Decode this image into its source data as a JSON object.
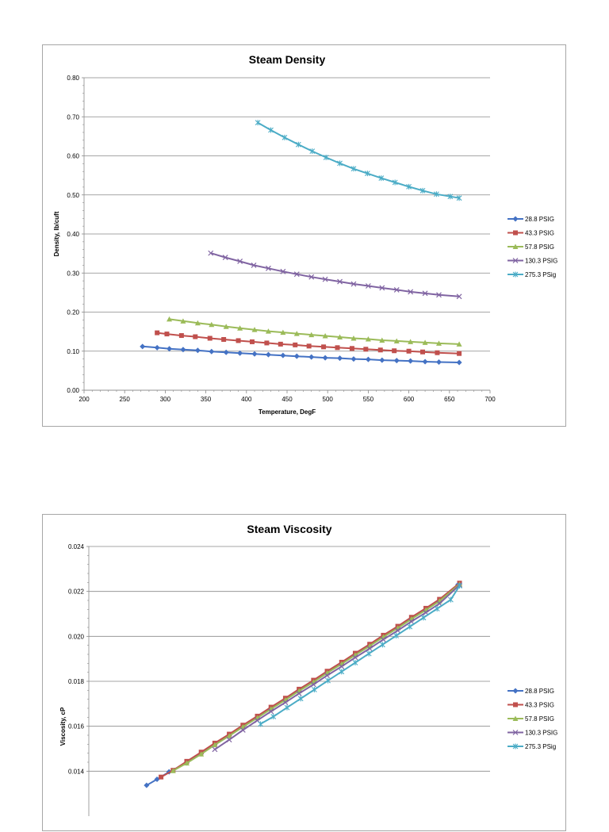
{
  "chart_data": [
    {
      "type": "line",
      "title": "Steam Density",
      "xlabel": "Temperature, DegF",
      "ylabel": "Density, lb/cuft",
      "xlim": [
        200,
        700
      ],
      "ylim": [
        0,
        0.8
      ],
      "xticks": [
        "200",
        "250",
        "300",
        "350",
        "400",
        "450",
        "500",
        "550",
        "600",
        "650",
        "700"
      ],
      "yticks": [
        "0.00",
        "0.10",
        "0.20",
        "0.30",
        "0.40",
        "0.50",
        "0.60",
        "0.70",
        "0.80"
      ],
      "grid": true,
      "legend_position": "right",
      "series": [
        {
          "name": "28.8 PSIG",
          "color": "#4472c4",
          "marker": "diamond",
          "x": [
            272,
            290,
            305,
            322,
            340,
            357,
            375,
            392,
            410,
            427,
            445,
            462,
            480,
            497,
            515,
            532,
            550,
            567,
            585,
            602,
            620,
            637,
            662
          ],
          "y": [
            0.112,
            0.109,
            0.106,
            0.104,
            0.102,
            0.099,
            0.097,
            0.095,
            0.093,
            0.091,
            0.089,
            0.087,
            0.085,
            0.083,
            0.082,
            0.08,
            0.079,
            0.077,
            0.076,
            0.075,
            0.073,
            0.072,
            0.071
          ]
        },
        {
          "name": "43.3 PSIG",
          "color": "#c0504d",
          "marker": "square",
          "x": [
            290,
            302,
            320,
            337,
            355,
            372,
            390,
            407,
            425,
            442,
            460,
            477,
            495,
            512,
            530,
            547,
            565,
            582,
            600,
            617,
            635,
            662
          ],
          "y": [
            0.147,
            0.144,
            0.14,
            0.137,
            0.133,
            0.13,
            0.127,
            0.124,
            0.121,
            0.118,
            0.116,
            0.113,
            0.111,
            0.109,
            0.107,
            0.105,
            0.103,
            0.101,
            0.1,
            0.098,
            0.096,
            0.094
          ]
        },
        {
          "name": "57.8 PSIG",
          "color": "#9bbb59",
          "marker": "triangle",
          "x": [
            305,
            322,
            340,
            357,
            375,
            392,
            410,
            427,
            445,
            462,
            480,
            497,
            515,
            532,
            550,
            567,
            585,
            602,
            620,
            637,
            662
          ],
          "y": [
            0.182,
            0.177,
            0.172,
            0.168,
            0.163,
            0.159,
            0.155,
            0.151,
            0.148,
            0.145,
            0.142,
            0.139,
            0.136,
            0.133,
            0.131,
            0.128,
            0.126,
            0.124,
            0.122,
            0.12,
            0.118
          ]
        },
        {
          "name": "130.3 PSIG",
          "color": "#8064a2",
          "marker": "x",
          "x": [
            356,
            374,
            392,
            409,
            427,
            445,
            462,
            480,
            497,
            515,
            532,
            550,
            567,
            585,
            602,
            620,
            637,
            662
          ],
          "y": [
            0.351,
            0.34,
            0.33,
            0.32,
            0.312,
            0.304,
            0.297,
            0.29,
            0.284,
            0.278,
            0.272,
            0.267,
            0.262,
            0.257,
            0.252,
            0.248,
            0.244,
            0.24
          ]
        },
        {
          "name": "275.3 PSig",
          "color": "#4bacc6",
          "marker": "star",
          "x": [
            414,
            430,
            447,
            464,
            481,
            498,
            515,
            532,
            549,
            566,
            583,
            600,
            617,
            634,
            651,
            662
          ],
          "y": [
            0.685,
            0.666,
            0.647,
            0.629,
            0.612,
            0.596,
            0.581,
            0.567,
            0.555,
            0.543,
            0.532,
            0.521,
            0.511,
            0.502,
            0.496,
            0.492
          ]
        }
      ]
    },
    {
      "type": "line",
      "title": "Steam Viscosity",
      "xlabel": "",
      "ylabel": "Viscosity, cP",
      "xlim": [
        200,
        700
      ],
      "ylim": [
        0.012,
        0.024
      ],
      "yticks": [
        "0.024",
        "0.022",
        "0.020",
        "0.018",
        "0.016",
        "0.014"
      ],
      "grid": true,
      "legend_position": "right",
      "series": [
        {
          "name": "28.8 PSIG",
          "color": "#4472c4",
          "marker": "diamond",
          "x": [
            272,
            285,
            300,
            322,
            340,
            357,
            375,
            392,
            410,
            427,
            445,
            462,
            480,
            497,
            515,
            532,
            550,
            567,
            585,
            602,
            620,
            637,
            660
          ],
          "y": [
            0.01337,
            0.01364,
            0.01397,
            0.01437,
            0.01478,
            0.01518,
            0.01558,
            0.01598,
            0.01638,
            0.01678,
            0.01718,
            0.01758,
            0.01798,
            0.01838,
            0.01878,
            0.01918,
            0.01958,
            0.01998,
            0.02038,
            0.02078,
            0.02118,
            0.02158,
            0.0223
          ]
        },
        {
          "name": "43.3 PSIG",
          "color": "#c0504d",
          "marker": "square",
          "x": [
            290,
            305,
            322,
            340,
            357,
            375,
            392,
            410,
            427,
            445,
            462,
            480,
            497,
            515,
            532,
            550,
            567,
            585,
            602,
            620,
            637,
            662
          ],
          "y": [
            0.01374,
            0.01404,
            0.01444,
            0.01485,
            0.01525,
            0.01565,
            0.01605,
            0.01645,
            0.01685,
            0.01725,
            0.01765,
            0.01805,
            0.01845,
            0.01885,
            0.01925,
            0.01965,
            0.02005,
            0.02045,
            0.02085,
            0.02125,
            0.02165,
            0.02237
          ]
        },
        {
          "name": "57.8 PSIG",
          "color": "#9bbb59",
          "marker": "triangle",
          "x": [
            305,
            322,
            340,
            357,
            375,
            392,
            410,
            427,
            445,
            462,
            480,
            497,
            515,
            532,
            550,
            567,
            585,
            602,
            620,
            637,
            662
          ],
          "y": [
            0.01402,
            0.01436,
            0.01476,
            0.01517,
            0.01557,
            0.01597,
            0.01637,
            0.01677,
            0.01717,
            0.01757,
            0.01797,
            0.01837,
            0.01877,
            0.01917,
            0.01957,
            0.01997,
            0.02037,
            0.02077,
            0.02117,
            0.02157,
            0.02232
          ]
        },
        {
          "name": "130.3 PSIG",
          "color": "#8064a2",
          "marker": "x",
          "x": [
            357,
            375,
            392,
            410,
            427,
            445,
            462,
            480,
            497,
            515,
            532,
            550,
            567,
            585,
            602,
            620,
            637,
            662
          ],
          "y": [
            0.01497,
            0.0154,
            0.01583,
            0.01626,
            0.01666,
            0.01706,
            0.01746,
            0.01786,
            0.01826,
            0.01866,
            0.01906,
            0.01946,
            0.01986,
            0.02026,
            0.02066,
            0.02106,
            0.02146,
            0.02228
          ]
        },
        {
          "name": "275.3 PSig",
          "color": "#4bacc6",
          "marker": "star",
          "x": [
            414,
            430,
            447,
            464,
            481,
            498,
            515,
            532,
            549,
            566,
            583,
            600,
            617,
            634,
            651,
            662
          ],
          "y": [
            0.0161,
            0.01643,
            0.01683,
            0.01723,
            0.01763,
            0.01803,
            0.01843,
            0.01883,
            0.01923,
            0.01963,
            0.02003,
            0.02043,
            0.02083,
            0.02123,
            0.02163,
            0.02225
          ]
        }
      ]
    }
  ]
}
